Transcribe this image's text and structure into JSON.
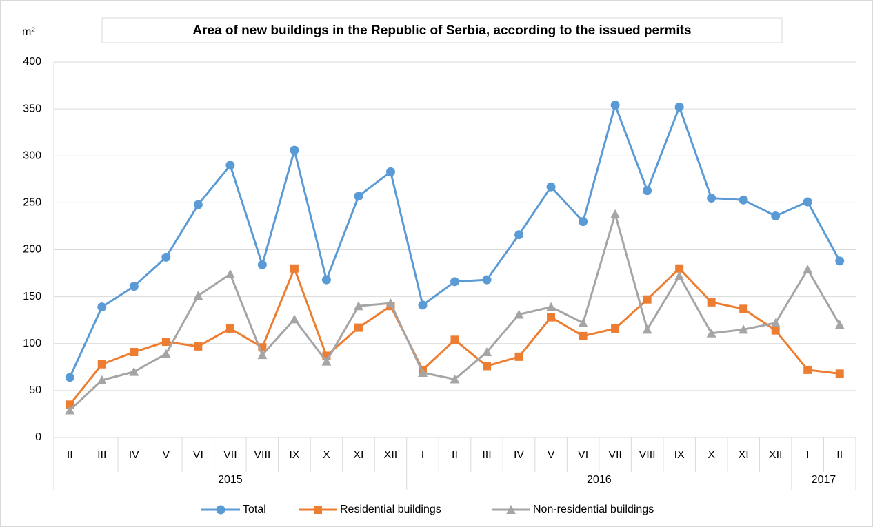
{
  "chart_data": {
    "type": "line",
    "title": "Area of new buildings in the Republic of Serbia, according to the issued permits",
    "y_label": "m²",
    "category_groups": [
      {
        "name": "2015",
        "categories": [
          "II",
          "III",
          "IV",
          "V",
          "VI",
          "VII",
          "VIII",
          "IX",
          "X",
          "XI",
          "XII"
        ]
      },
      {
        "name": "2016",
        "categories": [
          "I",
          "II",
          "III",
          "IV",
          "V",
          "VI",
          "VII",
          "VIII",
          "IX",
          "X",
          "XI",
          "XII"
        ]
      },
      {
        "name": "2017",
        "categories": [
          "I",
          "II"
        ]
      }
    ],
    "series": [
      {
        "name": "Total",
        "color": "#5b9bd5",
        "marker": "circle",
        "values": [
          64,
          139,
          161,
          192,
          248,
          290,
          184,
          306,
          168,
          257,
          283,
          141,
          166,
          168,
          216,
          267,
          230,
          354,
          263,
          352,
          255,
          253,
          236,
          251,
          188
        ]
      },
      {
        "name": "Residential buildings",
        "color": "#ed7d31",
        "marker": "square",
        "values": [
          35,
          78,
          91,
          102,
          97,
          116,
          96,
          180,
          87,
          117,
          140,
          72,
          104,
          76,
          86,
          128,
          108,
          116,
          147,
          180,
          144,
          137,
          114,
          72,
          68
        ]
      },
      {
        "name": "Non-residential buildings",
        "color": "#a5a5a5",
        "marker": "triangle",
        "values": [
          29,
          61,
          70,
          89,
          151,
          174,
          88,
          126,
          81,
          140,
          143,
          69,
          62,
          91,
          131,
          139,
          122,
          238,
          115,
          172,
          111,
          115,
          122,
          179,
          120
        ]
      }
    ],
    "ylim": [
      0,
      400
    ],
    "yticks": [
      0,
      50,
      100,
      150,
      200,
      250,
      300,
      350,
      400
    ],
    "grid": true,
    "legend": "bottom"
  }
}
